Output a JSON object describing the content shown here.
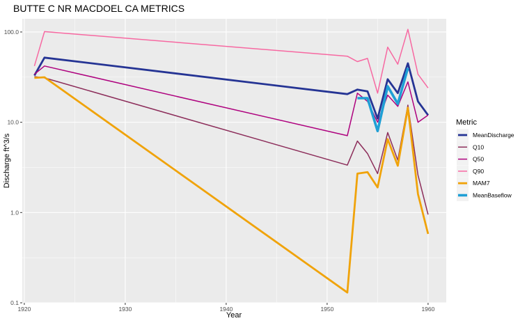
{
  "chart_data": {
    "type": "line",
    "title": "BUTTE C NR MACDOEL CA  METRICS",
    "xlabel": "Year",
    "ylabel": "Discharge ft^3/s",
    "y_scale": "log10",
    "ylim": [
      0.1,
      140
    ],
    "xlim": [
      1919.8,
      1961.8
    ],
    "x_ticks": [
      1920,
      1930,
      1940,
      1950,
      1960
    ],
    "x_tick_labels": [
      "1920",
      "1930",
      "1940",
      "1950",
      "1960"
    ],
    "y_ticks": [
      0.1,
      1,
      10,
      100
    ],
    "y_tick_labels": [
      "0.1",
      "1.0",
      "10.0",
      "100.0"
    ],
    "grid": true,
    "legend_title": "Metric",
    "legend_position": "right",
    "series": [
      {
        "name": "MeanDischarge",
        "color": "#253494",
        "width": 2.8,
        "x": [
          1921,
          1922,
          1952,
          1953,
          1954,
          1955,
          1956,
          1957,
          1958,
          1959,
          1960
        ],
        "values": [
          33,
          52,
          20.5,
          23,
          22,
          11,
          30,
          21,
          45,
          17,
          12
        ]
      },
      {
        "name": "Q10",
        "color": "#8c2d5a",
        "width": 1.5,
        "x": [
          1921,
          1922,
          1952,
          1953,
          1954,
          1955,
          1956,
          1957,
          1958,
          1959,
          1960
        ],
        "values": [
          32,
          31,
          3.35,
          6.2,
          4.5,
          2.7,
          7.7,
          3.8,
          15.5,
          2.6,
          0.95
        ]
      },
      {
        "name": "Q50",
        "color": "#ae017e",
        "width": 1.5,
        "x": [
          1921,
          1922,
          1952,
          1953,
          1954,
          1955,
          1956,
          1957,
          1958,
          1959,
          1960
        ],
        "values": [
          34,
          42,
          7.1,
          21,
          17,
          10,
          20,
          15,
          28,
          10,
          12
        ]
      },
      {
        "name": "Q90",
        "color": "#f768a1",
        "width": 1.5,
        "x": [
          1921,
          1922,
          1952,
          1953,
          1954,
          1955,
          1956,
          1957,
          1958,
          1959,
          1960
        ],
        "values": [
          42,
          101,
          54,
          47,
          51,
          21,
          68,
          44,
          107,
          34,
          24
        ]
      },
      {
        "name": "MAM7",
        "color": "#f0a30a",
        "width": 2.8,
        "x": [
          1921,
          1922,
          1952,
          1953,
          1954,
          1955,
          1956,
          1957,
          1958,
          1959,
          1960
        ],
        "values": [
          31,
          31.5,
          0.13,
          2.7,
          2.8,
          1.9,
          6.5,
          3.3,
          14.5,
          1.6,
          0.58
        ]
      },
      {
        "name": "MeanBaseflow",
        "color": "#1f9fd5",
        "width": 3.6,
        "x": [
          1953,
          1954,
          1955,
          1956,
          1957,
          1958
        ],
        "values": [
          18.5,
          18.5,
          8,
          25,
          16,
          40
        ]
      }
    ]
  }
}
